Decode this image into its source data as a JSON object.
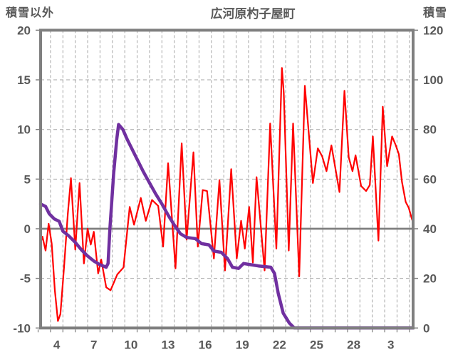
{
  "title": "広河原杓子屋町",
  "left_axis_label": "積雪以外",
  "right_axis_label": "積雪",
  "chart_data": {
    "type": "line",
    "title": "広河原杓子屋町",
    "grid": true,
    "legend": "none",
    "axis_left": {
      "label": "積雪以外",
      "ticks": [
        20,
        15,
        10,
        5,
        0,
        -5,
        -10
      ],
      "min": -10,
      "max": 20
    },
    "axis_right": {
      "label": "積雪",
      "ticks": [
        120,
        100,
        80,
        60,
        40,
        20,
        0
      ],
      "min": 0,
      "max": 120
    },
    "axis_x": {
      "day_start": 2.7,
      "day_end": 32.8,
      "tick_days": [
        4,
        7,
        10,
        13,
        16,
        19,
        22,
        25,
        28,
        31
      ],
      "tick_labels": [
        "4",
        "7",
        "10",
        "13",
        "16",
        "19",
        "22",
        "25",
        "28",
        "3"
      ],
      "gridline_start": 3.5,
      "gridline_step": 1
    },
    "colors": {
      "temperature": "#FF0000",
      "snow": "#7030A0",
      "axis": "#7F7F7F",
      "grid": "#A6A6A6",
      "text": "#595959",
      "zero_line": "#7F7F7F"
    },
    "series": [
      {
        "name": "積雪以外",
        "axis": "left",
        "color": "#FF0000",
        "stroke_width": 2.2,
        "points": [
          [
            2.7,
            -1.4
          ],
          [
            2.85,
            -0.8
          ],
          [
            3.1,
            -2.2
          ],
          [
            3.35,
            0.5
          ],
          [
            3.6,
            -1.5
          ],
          [
            3.85,
            -6.2
          ],
          [
            4.1,
            -9.3
          ],
          [
            4.3,
            -8.6
          ],
          [
            4.6,
            -3.8
          ],
          [
            4.9,
            1.5
          ],
          [
            5.15,
            5.1
          ],
          [
            5.5,
            -2.1
          ],
          [
            5.85,
            4.6
          ],
          [
            6.2,
            -3.5
          ],
          [
            6.5,
            0.0
          ],
          [
            6.75,
            -1.6
          ],
          [
            7.0,
            -0.3
          ],
          [
            7.35,
            -4.5
          ],
          [
            7.6,
            -3.1
          ],
          [
            8.0,
            -5.9
          ],
          [
            8.35,
            -6.2
          ],
          [
            8.9,
            -4.6
          ],
          [
            9.4,
            -3.9
          ],
          [
            9.9,
            2.2
          ],
          [
            10.25,
            0.4
          ],
          [
            10.8,
            3.1
          ],
          [
            11.2,
            0.8
          ],
          [
            11.7,
            2.9
          ],
          [
            12.2,
            2.3
          ],
          [
            12.6,
            -1.8
          ],
          [
            13.0,
            6.6
          ],
          [
            13.6,
            -4.0
          ],
          [
            14.1,
            8.6
          ],
          [
            14.5,
            -1.1
          ],
          [
            15.05,
            7.7
          ],
          [
            15.4,
            -1.8
          ],
          [
            15.8,
            3.9
          ],
          [
            16.15,
            3.8
          ],
          [
            16.7,
            -3.0
          ],
          [
            17.15,
            4.9
          ],
          [
            17.6,
            -4.2
          ],
          [
            18.1,
            6.0
          ],
          [
            18.55,
            -3.0
          ],
          [
            18.9,
            0.8
          ],
          [
            19.2,
            -2.0
          ],
          [
            19.55,
            2.2
          ],
          [
            19.85,
            -3.4
          ],
          [
            20.15,
            5.2
          ],
          [
            20.8,
            -4.2
          ],
          [
            21.25,
            10.6
          ],
          [
            21.75,
            -2.0
          ],
          [
            22.2,
            16.2
          ],
          [
            22.35,
            13.7
          ],
          [
            22.75,
            -2.2
          ],
          [
            23.1,
            10.6
          ],
          [
            23.6,
            -4.8
          ],
          [
            24.05,
            14.4
          ],
          [
            24.7,
            4.6
          ],
          [
            25.1,
            8.1
          ],
          [
            25.45,
            7.3
          ],
          [
            25.8,
            5.8
          ],
          [
            26.2,
            8.4
          ],
          [
            26.85,
            3.7
          ],
          [
            27.25,
            13.9
          ],
          [
            27.6,
            7.2
          ],
          [
            27.9,
            5.8
          ],
          [
            28.15,
            7.4
          ],
          [
            28.6,
            4.3
          ],
          [
            29.0,
            3.8
          ],
          [
            29.3,
            4.4
          ],
          [
            29.55,
            9.3
          ],
          [
            29.8,
            3.4
          ],
          [
            30.0,
            -1.2
          ],
          [
            30.35,
            12.3
          ],
          [
            30.7,
            6.3
          ],
          [
            31.1,
            9.3
          ],
          [
            31.4,
            8.4
          ],
          [
            31.65,
            7.5
          ],
          [
            31.9,
            4.7
          ],
          [
            32.2,
            2.7
          ],
          [
            32.45,
            2.1
          ],
          [
            32.65,
            1.2
          ],
          [
            32.8,
            0.6
          ]
        ]
      },
      {
        "name": "積雪",
        "axis": "right",
        "color": "#7030A0",
        "stroke_width": 4.5,
        "points": [
          [
            2.7,
            50
          ],
          [
            3.1,
            49
          ],
          [
            3.4,
            46
          ],
          [
            3.8,
            44
          ],
          [
            4.2,
            43
          ],
          [
            4.5,
            39
          ],
          [
            5.0,
            37
          ],
          [
            5.5,
            34.5
          ],
          [
            6.0,
            31.5
          ],
          [
            6.5,
            29
          ],
          [
            7.0,
            27
          ],
          [
            7.5,
            25.5
          ],
          [
            8.0,
            24.5
          ],
          [
            8.15,
            26
          ],
          [
            8.3,
            40
          ],
          [
            8.6,
            62
          ],
          [
            8.85,
            76
          ],
          [
            9.0,
            82
          ],
          [
            9.35,
            80
          ],
          [
            9.7,
            76
          ],
          [
            10.1,
            72
          ],
          [
            10.5,
            68
          ],
          [
            11.0,
            63
          ],
          [
            11.5,
            58.5
          ],
          [
            12.0,
            54
          ],
          [
            12.5,
            50
          ],
          [
            13.0,
            45.5
          ],
          [
            13.5,
            41.5
          ],
          [
            14.0,
            38
          ],
          [
            14.5,
            36.5
          ],
          [
            15.2,
            36
          ],
          [
            15.7,
            34
          ],
          [
            16.3,
            33.5
          ],
          [
            16.7,
            31
          ],
          [
            17.3,
            30.5
          ],
          [
            17.8,
            28
          ],
          [
            18.2,
            24.5
          ],
          [
            18.7,
            24
          ],
          [
            19.1,
            26
          ],
          [
            19.7,
            25.5
          ],
          [
            20.3,
            25
          ],
          [
            21.3,
            24.5
          ],
          [
            21.6,
            22
          ],
          [
            21.9,
            14
          ],
          [
            22.3,
            6
          ],
          [
            22.8,
            2
          ],
          [
            23.2,
            0
          ],
          [
            32.8,
            0
          ]
        ]
      }
    ]
  }
}
